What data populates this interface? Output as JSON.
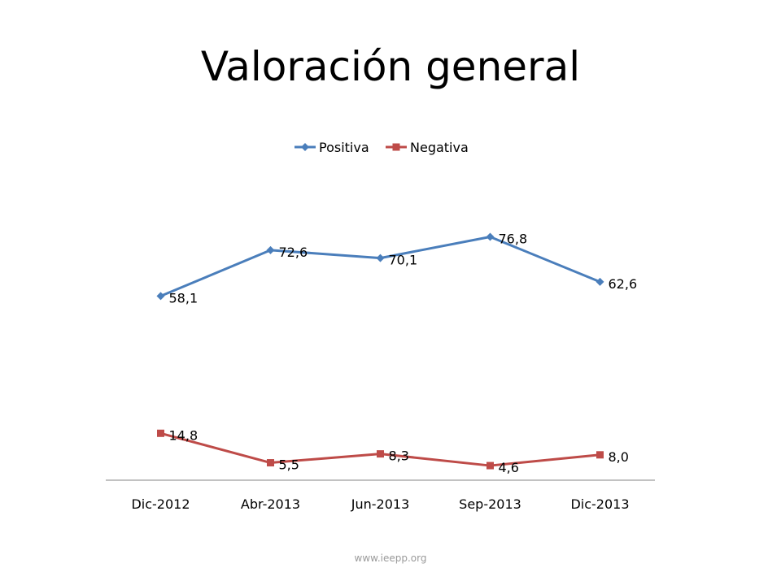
{
  "page": {
    "title": "Valoración general",
    "footer": "www.ieepp.org"
  },
  "chart_data": {
    "type": "line",
    "title": "Valoración general",
    "categories": [
      "Dic-2012",
      "Abr-2013",
      "Jun-2013",
      "Sep-2013",
      "Dic-2013"
    ],
    "series": [
      {
        "name": "Positiva",
        "values": [
          58.1,
          72.6,
          70.1,
          76.8,
          62.6
        ],
        "labels": [
          "58,1",
          "72,6",
          "70,1",
          "76,8",
          "62,6"
        ],
        "color": "#4a7ebb",
        "marker": "diamond"
      },
      {
        "name": "Negativa",
        "values": [
          14.8,
          5.5,
          8.3,
          4.6,
          8.0
        ],
        "labels": [
          "14,8",
          "5,5",
          "8,3",
          "4,6",
          "8,0"
        ],
        "color": "#be4b48",
        "marker": "square"
      }
    ],
    "ylim": [
      0,
      90
    ],
    "grid": false,
    "legend": "top"
  }
}
